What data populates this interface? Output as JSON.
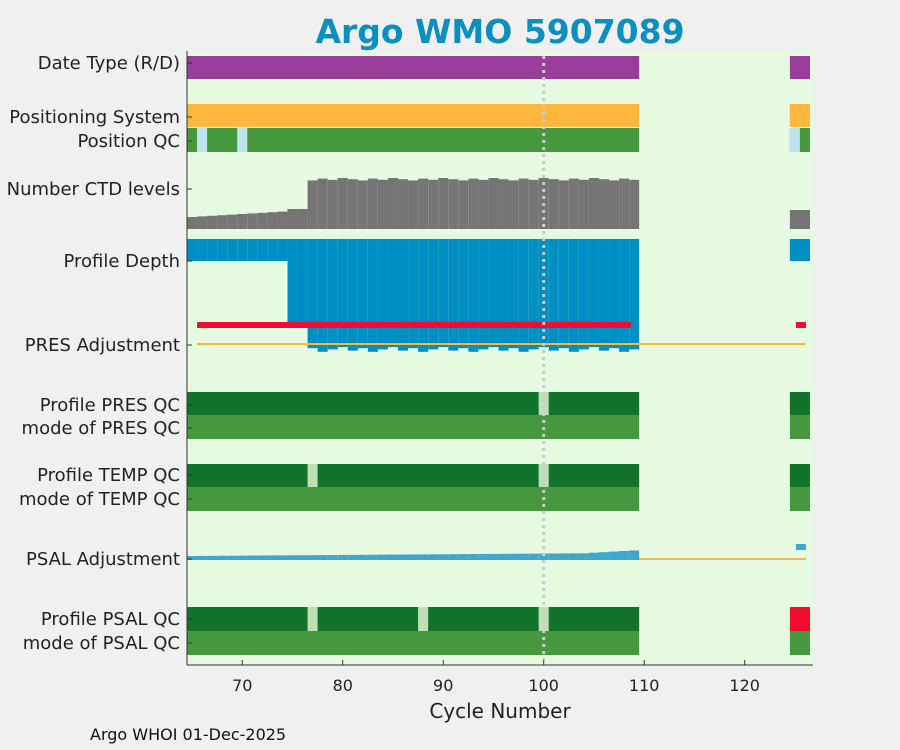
{
  "title": "Argo WMO 5907089",
  "footer": "Argo WHOI 01-Dec-2025",
  "colors": {
    "background": "#e6f9e1",
    "data_type": "#9a3c99",
    "positioning": "#fdb73f",
    "qc_good": "#46983f",
    "qc_good_dark": "#12742b",
    "qc_light": "#bfe0b6",
    "qc_blue_light": "#bde3ec",
    "ctd": "#757575",
    "depth": "#008fc2",
    "pres_adj": "#f20c2f",
    "psal_adj": "#3da7cc",
    "zero_line": "#fdb73f",
    "psal_bad": "#f20c2f"
  },
  "chart_data": {
    "type": "heatmap",
    "xlabel": "Cycle Number",
    "xticks": [
      70,
      80,
      90,
      100,
      110,
      120
    ],
    "xlim": [
      64.5,
      126.8
    ],
    "highlight_cycle": 100,
    "rows": [
      {
        "label": "Date Type (R/D)"
      },
      {
        "label": "Positioning System"
      },
      {
        "label": "Position QC"
      },
      {
        "label": "Number CTD levels"
      },
      {
        "label": "Profile Depth"
      },
      {
        "label": "PRES Adjustment"
      },
      {
        "label": "Profile PRES QC"
      },
      {
        "label": "mode of PRES QC"
      },
      {
        "label": "Profile TEMP QC"
      },
      {
        "label": "mode of TEMP QC"
      },
      {
        "label": "PSAL Adjustment"
      },
      {
        "label": "Profile PSAL QC"
      },
      {
        "label": "mode of PSAL QC"
      }
    ],
    "cycle_ranges": [
      [
        65,
        109
      ],
      [
        125,
        126
      ]
    ],
    "position_qc_light_cycles": [
      66,
      70,
      125
    ],
    "ctd_levels_low_cycles": [
      65,
      74
    ],
    "ctd_levels_mid_cycles": [
      75,
      76
    ],
    "profile_depth_shallow_cycles": [
      65,
      74
    ],
    "temp_qc_light_cycles": [
      77,
      100
    ],
    "pres_qc_light_cycles": [
      100
    ],
    "psal_qc_light_cycles": [
      77,
      88,
      100
    ],
    "psal_qc_bad_cycles": [
      125,
      126
    ]
  }
}
